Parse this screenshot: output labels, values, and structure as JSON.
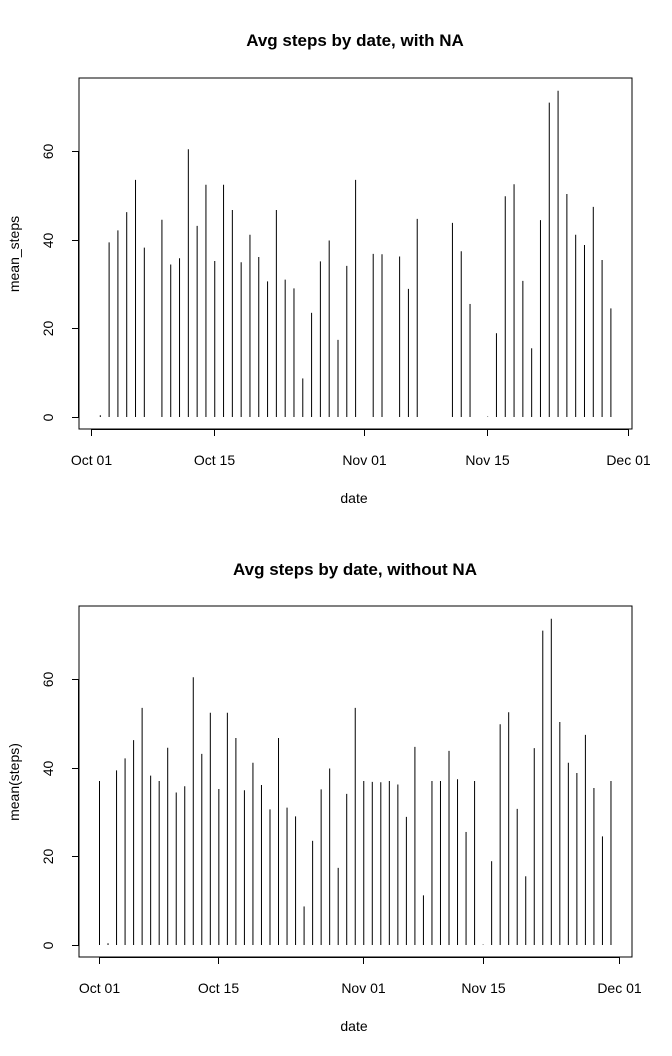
{
  "chart_data": [
    {
      "type": "bar",
      "title": "Avg steps by date, with NA",
      "xlabel": "date",
      "ylabel": "mean_steps",
      "xlim": [
        "2012-10-01",
        "2012-12-01"
      ],
      "ylim": [
        0,
        75
      ],
      "x_ticks": [
        "Oct 01",
        "Oct 15",
        "Nov 01",
        "Nov 15",
        "Dec 01"
      ],
      "y_ticks": [
        "0",
        "20",
        "40",
        "60"
      ],
      "grid": false,
      "x": [
        "2012-10-02",
        "2012-10-03",
        "2012-10-04",
        "2012-10-05",
        "2012-10-06",
        "2012-10-07",
        "2012-10-09",
        "2012-10-10",
        "2012-10-11",
        "2012-10-12",
        "2012-10-13",
        "2012-10-14",
        "2012-10-15",
        "2012-10-16",
        "2012-10-17",
        "2012-10-18",
        "2012-10-19",
        "2012-10-20",
        "2012-10-21",
        "2012-10-22",
        "2012-10-23",
        "2012-10-24",
        "2012-10-25",
        "2012-10-26",
        "2012-10-27",
        "2012-10-28",
        "2012-10-29",
        "2012-10-30",
        "2012-10-31",
        "2012-11-02",
        "2012-11-03",
        "2012-11-05",
        "2012-11-06",
        "2012-11-07",
        "2012-11-11",
        "2012-11-12",
        "2012-11-13",
        "2012-11-15",
        "2012-11-16",
        "2012-11-17",
        "2012-11-18",
        "2012-11-19",
        "2012-11-20",
        "2012-11-21",
        "2012-11-22",
        "2012-11-23",
        "2012-11-24",
        "2012-11-25",
        "2012-11-26",
        "2012-11-27",
        "2012-11-28",
        "2012-11-29"
      ],
      "values": [
        0.4,
        39.4,
        42.1,
        46.2,
        53.5,
        38.2,
        44.5,
        34.4,
        35.8,
        60.4,
        43.1,
        52.4,
        35.2,
        52.4,
        46.7,
        34.9,
        41.1,
        36.1,
        30.6,
        46.7,
        31.0,
        29.0,
        8.7,
        23.5,
        35.1,
        39.8,
        17.4,
        34.1,
        53.5,
        36.8,
        36.7,
        36.2,
        28.9,
        44.7,
        43.8,
        37.4,
        25.5,
        0.1,
        18.9,
        49.8,
        52.5,
        30.7,
        15.5,
        44.4,
        70.9,
        73.6,
        50.3,
        41.1,
        38.8,
        47.4,
        35.4,
        24.5
      ]
    },
    {
      "type": "bar",
      "title": "Avg steps by date, without NA",
      "xlabel": "date",
      "ylabel": "mean(steps)",
      "xlim": [
        "2012-10-01",
        "2012-12-01"
      ],
      "ylim": [
        0,
        75
      ],
      "x_ticks": [
        "Oct 01",
        "Oct 15",
        "Nov 01",
        "Nov 15",
        "Dec 01"
      ],
      "y_ticks": [
        "0",
        "20",
        "40",
        "60"
      ],
      "grid": false,
      "x": [
        "2012-10-01",
        "2012-10-02",
        "2012-10-03",
        "2012-10-04",
        "2012-10-05",
        "2012-10-06",
        "2012-10-07",
        "2012-10-08",
        "2012-10-09",
        "2012-10-10",
        "2012-10-11",
        "2012-10-12",
        "2012-10-13",
        "2012-10-14",
        "2012-10-15",
        "2012-10-16",
        "2012-10-17",
        "2012-10-18",
        "2012-10-19",
        "2012-10-20",
        "2012-10-21",
        "2012-10-22",
        "2012-10-23",
        "2012-10-24",
        "2012-10-25",
        "2012-10-26",
        "2012-10-27",
        "2012-10-28",
        "2012-10-29",
        "2012-10-30",
        "2012-10-31",
        "2012-11-01",
        "2012-11-02",
        "2012-11-03",
        "2012-11-04",
        "2012-11-05",
        "2012-11-06",
        "2012-11-07",
        "2012-11-08",
        "2012-11-09",
        "2012-11-10",
        "2012-11-11",
        "2012-11-12",
        "2012-11-13",
        "2012-11-14",
        "2012-11-15",
        "2012-11-16",
        "2012-11-17",
        "2012-11-18",
        "2012-11-19",
        "2012-11-20",
        "2012-11-21",
        "2012-11-22",
        "2012-11-23",
        "2012-11-24",
        "2012-11-25",
        "2012-11-26",
        "2012-11-27",
        "2012-11-28",
        "2012-11-29",
        "2012-11-30"
      ],
      "values": [
        37.0,
        0.4,
        39.4,
        42.1,
        46.2,
        53.5,
        38.2,
        37.0,
        44.5,
        34.4,
        35.8,
        60.4,
        43.1,
        52.4,
        35.2,
        52.4,
        46.7,
        34.9,
        41.1,
        36.1,
        30.6,
        46.7,
        31.0,
        29.0,
        8.7,
        23.5,
        35.1,
        39.8,
        17.4,
        34.1,
        53.5,
        37.0,
        36.8,
        36.7,
        37.0,
        36.2,
        28.9,
        44.7,
        11.2,
        37.0,
        37.0,
        43.8,
        37.4,
        25.5,
        37.0,
        0.1,
        18.9,
        49.8,
        52.5,
        30.7,
        15.5,
        44.4,
        70.9,
        73.6,
        50.3,
        41.1,
        38.8,
        47.4,
        35.4,
        24.5,
        37.0
      ]
    }
  ]
}
